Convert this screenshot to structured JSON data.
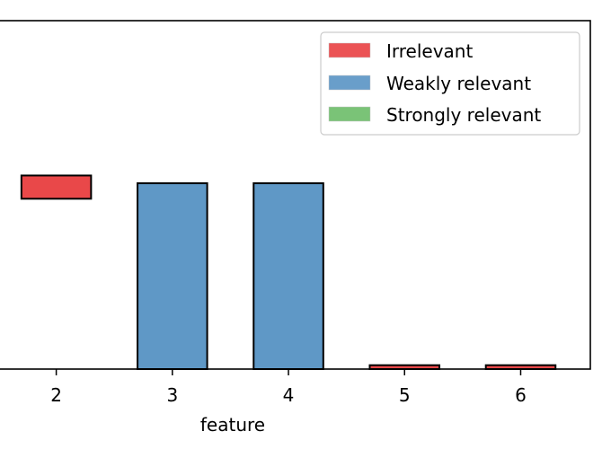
{
  "chart_data": {
    "type": "bar",
    "xlabel": "feature",
    "ylabel": "",
    "categories": [
      "2",
      "3",
      "4",
      "5",
      "6"
    ],
    "x": [
      2,
      3,
      4,
      5,
      6
    ],
    "bars": [
      {
        "x": 2,
        "lower": 0.88,
        "upper": 1.0,
        "category": "Irrelevant"
      },
      {
        "x": 3,
        "lower": 0.0,
        "upper": 0.96,
        "category": "Weakly relevant"
      },
      {
        "x": 4,
        "lower": 0.0,
        "upper": 0.96,
        "category": "Weakly relevant"
      },
      {
        "x": 5,
        "lower": 0.0,
        "upper": 0.02,
        "category": "Irrelevant"
      },
      {
        "x": 6,
        "lower": 0.0,
        "upper": 0.02,
        "category": "Irrelevant"
      }
    ],
    "xlim": [
      1.5,
      6.6
    ],
    "ylim": [
      0,
      1.8
    ],
    "legend": {
      "position": "top-right",
      "entries": [
        {
          "label": "Irrelevant",
          "color": "#e41a1c"
        },
        {
          "label": "Weakly relevant",
          "color": "#377eb8"
        },
        {
          "label": "Strongly relevant",
          "color": "#4daf4a"
        }
      ]
    }
  }
}
